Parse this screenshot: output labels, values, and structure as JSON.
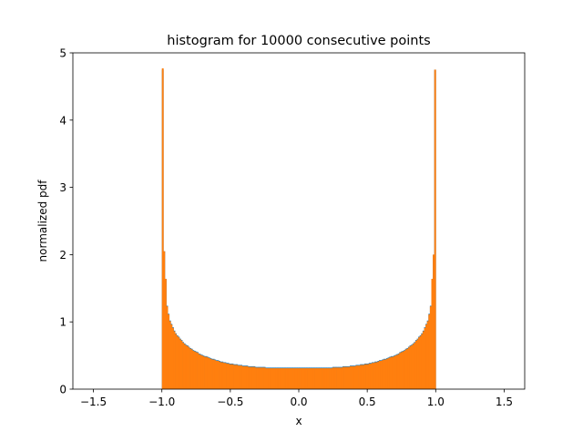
{
  "chart_data": {
    "type": "bar",
    "title": "histogram for 10000 consecutive points",
    "xlabel": "x",
    "ylabel": "normalized pdf",
    "xlim": [
      -1.65,
      1.65
    ],
    "ylim": [
      0,
      5
    ],
    "xticks": [
      -1.5,
      -1.0,
      -0.5,
      0.0,
      0.5,
      1.0,
      1.5
    ],
    "xtick_labels": [
      "−1.5",
      "−1.0",
      "−0.5",
      "0.0",
      "0.5",
      "1.0",
      "1.5"
    ],
    "yticks": [
      0,
      1,
      2,
      3,
      4,
      5
    ],
    "ytick_labels": [
      "0",
      "1",
      "2",
      "3",
      "4",
      "5"
    ],
    "grid": false,
    "legend": "none",
    "bin_range": [
      -1,
      1
    ],
    "series": [
      {
        "color": "#1f77b4",
        "values": [
          4.75,
          2.05,
          1.64,
          1.24,
          1.12,
          1.02,
          0.97,
          0.92,
          0.87,
          0.83,
          0.8,
          0.78,
          0.75,
          0.73,
          0.7,
          0.68,
          0.66,
          0.65,
          0.63,
          0.61,
          0.6,
          0.58,
          0.57,
          0.56,
          0.55,
          0.53,
          0.52,
          0.51,
          0.5,
          0.49,
          0.49,
          0.48,
          0.47,
          0.46,
          0.45,
          0.45,
          0.44,
          0.43,
          0.43,
          0.42,
          0.41,
          0.41,
          0.4,
          0.4,
          0.39,
          0.39,
          0.38,
          0.38,
          0.38,
          0.37,
          0.37,
          0.37,
          0.36,
          0.36,
          0.36,
          0.35,
          0.35,
          0.35,
          0.35,
          0.34,
          0.34,
          0.34,
          0.34,
          0.34,
          0.33,
          0.33,
          0.33,
          0.33,
          0.33,
          0.33,
          0.33,
          0.32,
          0.32,
          0.32,
          0.32,
          0.32,
          0.32,
          0.32,
          0.32,
          0.32,
          0.32,
          0.32,
          0.32,
          0.32,
          0.32,
          0.32,
          0.32,
          0.32,
          0.32,
          0.32,
          0.32,
          0.32,
          0.32,
          0.32,
          0.32,
          0.32,
          0.32,
          0.32,
          0.32,
          0.32,
          0.32,
          0.32,
          0.32,
          0.32,
          0.32,
          0.32,
          0.32,
          0.32,
          0.32,
          0.32,
          0.32,
          0.32,
          0.32,
          0.32,
          0.32,
          0.32,
          0.32,
          0.33,
          0.33,
          0.33,
          0.33,
          0.33,
          0.33,
          0.33,
          0.34,
          0.34,
          0.34,
          0.34,
          0.34,
          0.35,
          0.35,
          0.35,
          0.35,
          0.36,
          0.36,
          0.36,
          0.37,
          0.37,
          0.37,
          0.38,
          0.38,
          0.38,
          0.39,
          0.39,
          0.4,
          0.4,
          0.41,
          0.41,
          0.42,
          0.43,
          0.43,
          0.44,
          0.45,
          0.45,
          0.46,
          0.47,
          0.48,
          0.49,
          0.49,
          0.5,
          0.51,
          0.52,
          0.53,
          0.55,
          0.56,
          0.57,
          0.58,
          0.6,
          0.61,
          0.63,
          0.65,
          0.66,
          0.68,
          0.7,
          0.73,
          0.75,
          0.78,
          0.8,
          0.83,
          0.87,
          0.92,
          0.97,
          1.02,
          1.12,
          1.24,
          1.64,
          2.0,
          4.75
        ]
      },
      {
        "color": "#ff7f0e",
        "values": [
          4.77,
          2.05,
          1.64,
          1.23,
          1.11,
          1.01,
          0.96,
          0.91,
          0.86,
          0.82,
          0.79,
          0.77,
          0.74,
          0.72,
          0.69,
          0.67,
          0.65,
          0.64,
          0.62,
          0.6,
          0.59,
          0.57,
          0.56,
          0.55,
          0.54,
          0.52,
          0.51,
          0.5,
          0.49,
          0.48,
          0.48,
          0.47,
          0.46,
          0.45,
          0.44,
          0.44,
          0.43,
          0.42,
          0.42,
          0.41,
          0.4,
          0.4,
          0.39,
          0.39,
          0.38,
          0.38,
          0.37,
          0.37,
          0.37,
          0.36,
          0.36,
          0.36,
          0.35,
          0.35,
          0.35,
          0.34,
          0.34,
          0.34,
          0.34,
          0.33,
          0.33,
          0.33,
          0.33,
          0.33,
          0.32,
          0.32,
          0.32,
          0.32,
          0.32,
          0.32,
          0.32,
          0.31,
          0.31,
          0.31,
          0.31,
          0.31,
          0.31,
          0.31,
          0.31,
          0.31,
          0.31,
          0.31,
          0.31,
          0.31,
          0.31,
          0.31,
          0.31,
          0.31,
          0.31,
          0.31,
          0.31,
          0.31,
          0.31,
          0.31,
          0.31,
          0.31,
          0.31,
          0.31,
          0.31,
          0.31,
          0.31,
          0.31,
          0.31,
          0.31,
          0.31,
          0.31,
          0.31,
          0.31,
          0.31,
          0.31,
          0.31,
          0.31,
          0.31,
          0.31,
          0.31,
          0.31,
          0.31,
          0.32,
          0.32,
          0.32,
          0.32,
          0.32,
          0.32,
          0.32,
          0.33,
          0.33,
          0.33,
          0.33,
          0.33,
          0.34,
          0.34,
          0.34,
          0.34,
          0.35,
          0.35,
          0.35,
          0.36,
          0.36,
          0.36,
          0.37,
          0.37,
          0.37,
          0.38,
          0.38,
          0.39,
          0.39,
          0.4,
          0.4,
          0.41,
          0.42,
          0.42,
          0.43,
          0.44,
          0.44,
          0.45,
          0.46,
          0.47,
          0.48,
          0.48,
          0.49,
          0.5,
          0.51,
          0.52,
          0.54,
          0.55,
          0.56,
          0.57,
          0.59,
          0.6,
          0.62,
          0.64,
          0.65,
          0.67,
          0.69,
          0.72,
          0.74,
          0.77,
          0.79,
          0.82,
          0.86,
          0.91,
          0.96,
          1.01,
          1.11,
          1.23,
          1.64,
          2.0,
          4.75
        ]
      }
    ]
  }
}
